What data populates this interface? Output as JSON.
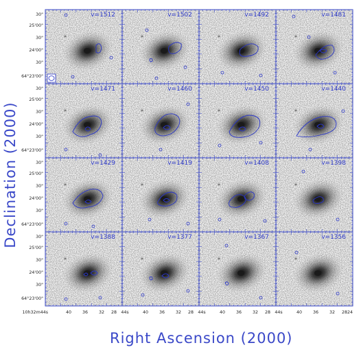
{
  "figure": {
    "x_axis_title": "Right Ascension (2000)",
    "y_axis_title": "Declination (2000)",
    "y_tick_labels": [
      "30\"",
      "25'00\"",
      "30\"",
      "24'00\"",
      "30\"",
      "64°23'00\""
    ],
    "x_tick_labels": [
      "10h32m44s",
      "40",
      "36",
      "32",
      "28",
      "24"
    ],
    "panels": [
      {
        "label": "v=1512"
      },
      {
        "label": "v=1502"
      },
      {
        "label": "v=1492"
      },
      {
        "label": "v=1481"
      },
      {
        "label": "v=1471"
      },
      {
        "label": "v=1460"
      },
      {
        "label": "v=1450"
      },
      {
        "label": "v=1440"
      },
      {
        "label": "v=1429"
      },
      {
        "label": "v=1419"
      },
      {
        "label": "v=1408"
      },
      {
        "label": "v=1398"
      },
      {
        "label": "v=1388"
      },
      {
        "label": "v=1377"
      },
      {
        "label": "v=1367"
      },
      {
        "label": "v=1356"
      }
    ],
    "colors": {
      "axes": "#3a48c8",
      "contour": "#2a36c8",
      "galaxy": "#1a1a1a",
      "noise": "#9a9a9a"
    }
  }
}
